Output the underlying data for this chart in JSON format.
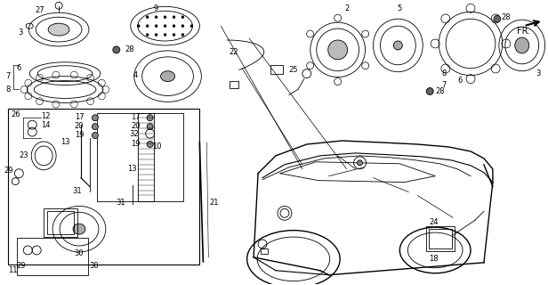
{
  "bg_color": "#ffffff",
  "line_color": "#000000",
  "fig_width": 6.16,
  "fig_height": 3.2,
  "dpi": 100,
  "font_size": 6.0
}
